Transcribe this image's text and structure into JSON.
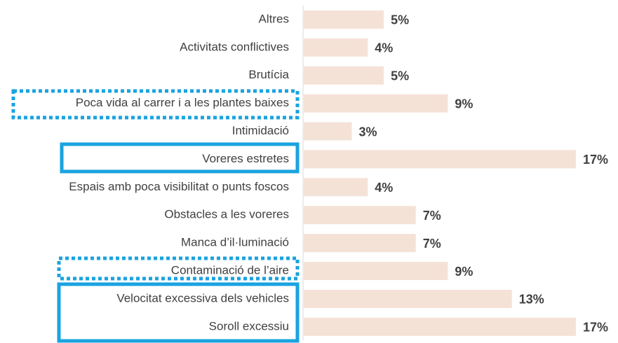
{
  "chart_data": {
    "type": "bar",
    "orientation": "horizontal",
    "categories": [
      "Altres",
      "Activitats conflictives",
      "Brutícia",
      "Poca vida al carrer i a les plantes baixes",
      "Intimidació",
      "Voreres estretes",
      "Espais amb poca visibilitat o punts foscos",
      "Obstacles a les voreres",
      "Manca d’il·luminació",
      "Contaminació de l’aire",
      "Velocitat excessiva dels vehicles",
      "Soroll excessiu"
    ],
    "values": [
      5,
      4,
      5,
      9,
      3,
      17,
      4,
      7,
      7,
      9,
      13,
      17
    ],
    "value_labels": [
      "5%",
      "4%",
      "5%",
      "9%",
      "3%",
      "17%",
      "4%",
      "7%",
      "7%",
      "9%",
      "13%",
      "17%"
    ],
    "color": "#f5e2d7"
  }
}
